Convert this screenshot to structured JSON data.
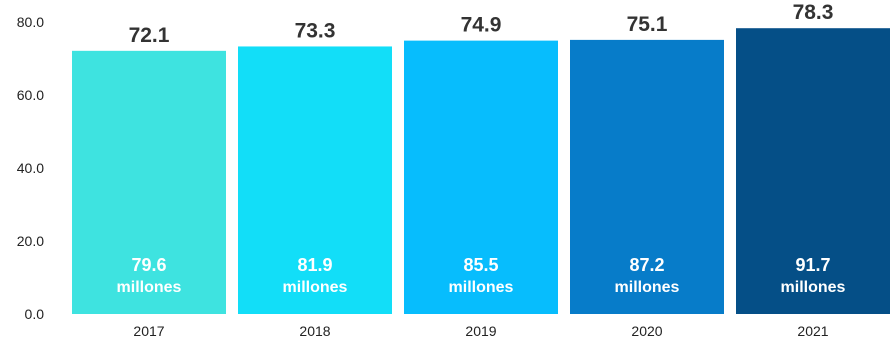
{
  "chart_data": {
    "type": "bar",
    "categories": [
      "2017",
      "2018",
      "2019",
      "2020",
      "2021"
    ],
    "values": [
      72.1,
      73.3,
      74.9,
      75.1,
      78.3
    ],
    "value_labels": [
      "72.1",
      "73.3",
      "74.9",
      "75.1",
      "78.3"
    ],
    "inner_values": [
      "79.6",
      "81.9",
      "85.5",
      "87.2",
      "91.7"
    ],
    "inner_unit": "millones",
    "colors": [
      "#3ee3e0",
      "#12def8",
      "#07bdfd",
      "#077cc9",
      "#054f87"
    ],
    "yticks": [
      "0.0",
      "20.0",
      "40.0",
      "60.0",
      "80.0"
    ],
    "ylim": [
      0,
      80
    ],
    "grid": false,
    "legend": "none"
  }
}
